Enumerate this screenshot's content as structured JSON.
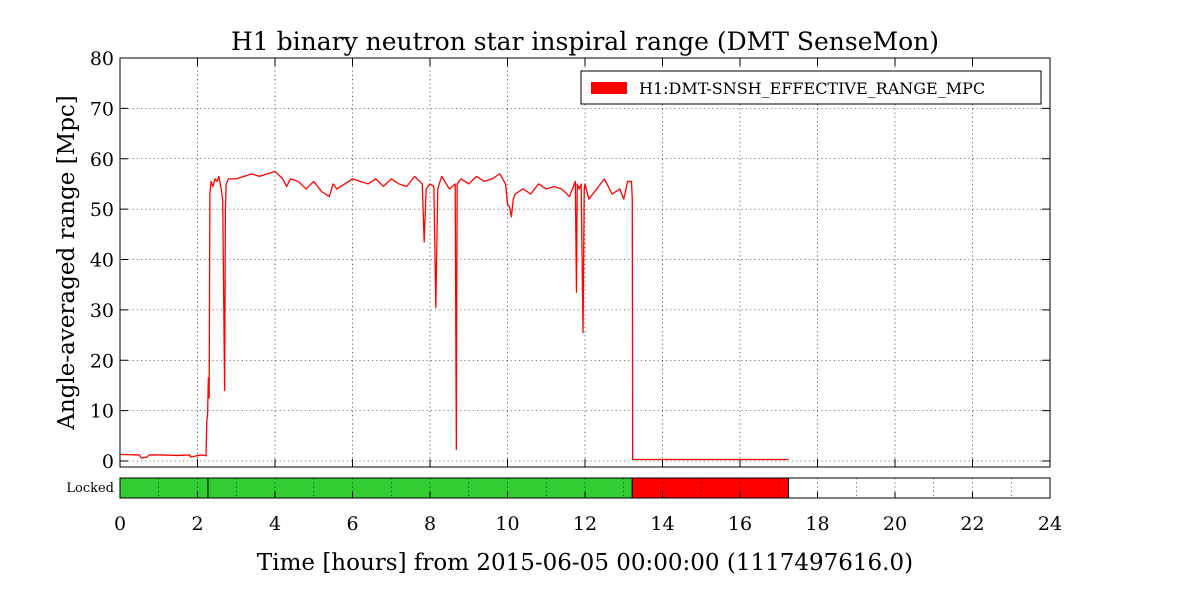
{
  "chart_data": {
    "type": "line",
    "title": "H1 binary neutron star inspiral range (DMT SenseMon)",
    "xlabel": "Time [hours] from 2015-06-05 00:00:00 (1117497616.0)",
    "ylabel": "Angle-averaged range [Mpc]",
    "xlim": [
      0,
      24
    ],
    "ylim": [
      0,
      80
    ],
    "xticks": [
      0,
      2,
      4,
      6,
      8,
      10,
      12,
      14,
      16,
      18,
      20,
      22,
      24
    ],
    "xtick_labels": [
      "0",
      "2",
      "4",
      "6",
      "8",
      "10",
      "12",
      "14",
      "16",
      "18",
      "20",
      "22",
      "24"
    ],
    "yticks": [
      0,
      10,
      20,
      30,
      40,
      50,
      60,
      70,
      80
    ],
    "ytick_labels": [
      "0",
      "10",
      "20",
      "30",
      "40",
      "50",
      "60",
      "70",
      "80"
    ],
    "grid": true,
    "legend": {
      "position": "top-right",
      "entries": [
        "H1:DMT-SNSH_EFFECTIVE_RANGE_MPC"
      ]
    },
    "series": [
      {
        "name": "H1:DMT-SNSH_EFFECTIVE_RANGE_MPC",
        "color": "#ff0000",
        "x": [
          0,
          0.5,
          0.55,
          0.7,
          0.75,
          1.0,
          1.5,
          1.8,
          1.82,
          2.1,
          2.2,
          2.22,
          2.24,
          2.26,
          2.28,
          2.3,
          2.32,
          2.35,
          2.4,
          2.45,
          2.5,
          2.55,
          2.6,
          2.65,
          2.7,
          2.72,
          2.74,
          2.8,
          3.0,
          3.2,
          3.4,
          3.6,
          3.8,
          4.0,
          4.2,
          4.3,
          4.4,
          4.6,
          4.8,
          5.0,
          5.2,
          5.4,
          5.5,
          5.6,
          5.8,
          6.0,
          6.2,
          6.4,
          6.6,
          6.8,
          7.0,
          7.2,
          7.4,
          7.6,
          7.8,
          7.85,
          7.9,
          8.0,
          8.1,
          8.15,
          8.2,
          8.3,
          8.5,
          8.65,
          8.68,
          8.7,
          8.8,
          9.0,
          9.2,
          9.4,
          9.6,
          9.8,
          9.95,
          10.0,
          10.05,
          10.1,
          10.15,
          10.2,
          10.4,
          10.6,
          10.8,
          11.0,
          11.2,
          11.4,
          11.6,
          11.75,
          11.78,
          11.8,
          11.85,
          11.9,
          11.95,
          11.98,
          12.0,
          12.1,
          12.3,
          12.5,
          12.7,
          12.9,
          13.0,
          13.1,
          13.2,
          13.22,
          13.23,
          13.24,
          17.25
        ],
        "y": [
          1.3,
          1.2,
          0.6,
          0.8,
          1.2,
          1.2,
          1.1,
          1.2,
          0.8,
          1.2,
          1.1,
          1.0,
          8.0,
          9.0,
          16.5,
          12.5,
          53.0,
          55.5,
          54.5,
          56.0,
          55.5,
          56.5,
          54.5,
          52.0,
          14.0,
          50.0,
          55.0,
          56.0,
          56.0,
          56.5,
          57.0,
          56.5,
          57.0,
          57.5,
          56.0,
          54.5,
          56.0,
          55.5,
          54.0,
          55.5,
          53.5,
          52.5,
          55.0,
          54.0,
          55.0,
          56.0,
          55.5,
          55.0,
          56.0,
          54.5,
          56.0,
          55.0,
          54.5,
          56.5,
          55.0,
          43.5,
          54.0,
          55.0,
          54.5,
          30.5,
          54.0,
          56.5,
          54.0,
          55.0,
          2.3,
          55.0,
          56.0,
          55.0,
          56.5,
          55.5,
          56.0,
          57.0,
          55.0,
          51.0,
          50.5,
          48.5,
          52.0,
          53.0,
          54.0,
          53.0,
          55.0,
          54.0,
          54.5,
          54.0,
          52.5,
          55.5,
          33.5,
          55.0,
          54.0,
          55.0,
          25.5,
          54.0,
          55.0,
          52.0,
          54.0,
          56.0,
          53.0,
          54.0,
          52.0,
          55.5,
          55.5,
          52.0,
          0.3,
          0.3,
          0.3
        ]
      }
    ],
    "segments": {
      "label": "Locked",
      "items": [
        {
          "start": 0.0,
          "end": 2.27,
          "state": "locked",
          "color": "#33cc33"
        },
        {
          "start": 2.27,
          "end": 13.22,
          "state": "locked",
          "color": "#33cc33"
        },
        {
          "start": 13.22,
          "end": 17.25,
          "state": "not-locked",
          "color": "#ff0000"
        }
      ]
    }
  }
}
